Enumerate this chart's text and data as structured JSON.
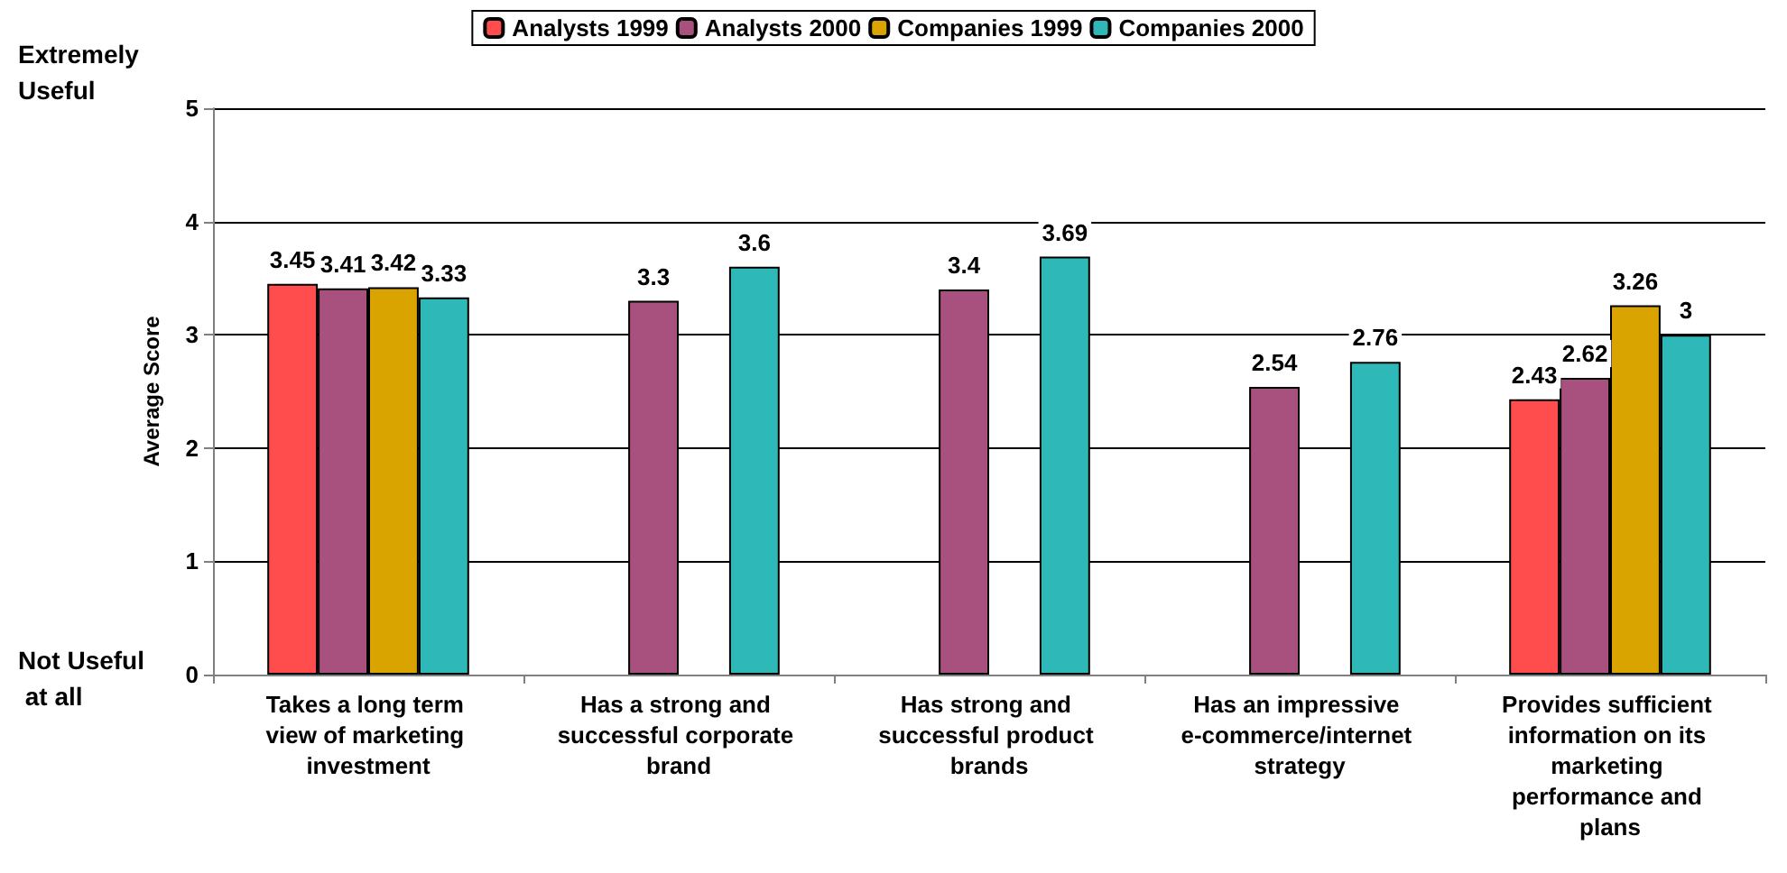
{
  "chart_data": {
    "type": "bar",
    "ylabel": "Average Score",
    "categories": [
      "Takes a long term view of marketing investment",
      "Has a strong and successful corporate brand",
      "Has strong and successful product brands",
      "Has an impressive e-commerce/internet strategy",
      "Provides sufficient information on its marketing performance and plans"
    ],
    "series": [
      {
        "name": "Analysts 1999",
        "color": "#ff4d4d",
        "values": [
          3.45,
          null,
          null,
          null,
          2.43
        ]
      },
      {
        "name": "Analysts 2000",
        "color": "#a8507e",
        "values": [
          3.41,
          3.3,
          3.4,
          2.54,
          2.62
        ]
      },
      {
        "name": "Companies 1999",
        "color": "#d9a400",
        "values": [
          3.42,
          null,
          null,
          null,
          3.26
        ]
      },
      {
        "name": "Companies 2000",
        "color": "#2eb8b8",
        "values": [
          3.33,
          3.6,
          3.69,
          2.76,
          3
        ]
      }
    ],
    "ylim": [
      0,
      5
    ],
    "yticks": [
      0,
      1,
      2,
      3,
      4,
      5
    ],
    "grid": "y",
    "legend": "top",
    "data_labels": true,
    "annotations": [
      "Extremely Useful",
      "Not Useful at all"
    ]
  }
}
